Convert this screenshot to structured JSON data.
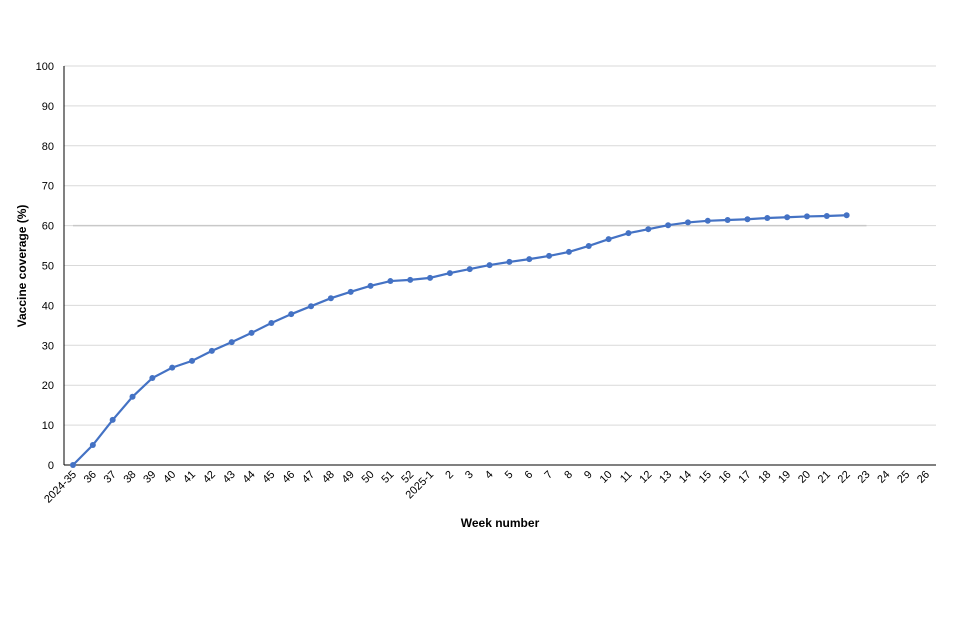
{
  "chart_data": {
    "type": "line",
    "xlabel": "Week number",
    "ylabel": "Vaccine coverage (%)",
    "categories": [
      "2024-35",
      "36",
      "37",
      "38",
      "39",
      "40",
      "41",
      "42",
      "43",
      "44",
      "45",
      "46",
      "47",
      "48",
      "49",
      "50",
      "51",
      "52",
      "2025-1",
      "2",
      "3",
      "4",
      "5",
      "6",
      "7",
      "8",
      "9",
      "10",
      "11",
      "12",
      "13",
      "14",
      "15",
      "16",
      "17",
      "18",
      "19",
      "20",
      "21",
      "22",
      "23",
      "24",
      "25",
      "26"
    ],
    "series": [
      {
        "color": "#4472c4",
        "markers": true,
        "values": [
          0,
          5,
          11.3,
          17.1,
          21.8,
          24.4,
          26.1,
          28.6,
          30.8,
          33.1,
          35.6,
          37.8,
          39.8,
          41.8,
          43.4,
          44.9,
          46.1,
          46.4,
          46.9,
          48.1,
          49.1,
          50.1,
          50.9,
          51.6,
          52.4,
          53.4,
          54.9,
          56.6,
          58.1,
          59.1,
          60.1,
          60.8,
          61.2,
          61.4,
          61.6,
          61.9,
          62.1,
          62.3,
          62.4,
          62.6,
          null,
          null,
          null,
          null
        ]
      },
      {
        "color": "#c8c8c8",
        "markers": false,
        "values": [
          60,
          60,
          60,
          60,
          60,
          60,
          60,
          60,
          60,
          60,
          60,
          60,
          60,
          60,
          60,
          60,
          60,
          60,
          60,
          60,
          60,
          60,
          60,
          60,
          60,
          60,
          60,
          60,
          60,
          60,
          60,
          60,
          60,
          60,
          60,
          60,
          60,
          60,
          60,
          60,
          60,
          null,
          null,
          null
        ]
      }
    ],
    "ylim": [
      0,
      100
    ],
    "yticks": [
      0,
      10,
      20,
      30,
      40,
      50,
      60,
      70,
      80,
      90,
      100
    ],
    "grid": true
  }
}
